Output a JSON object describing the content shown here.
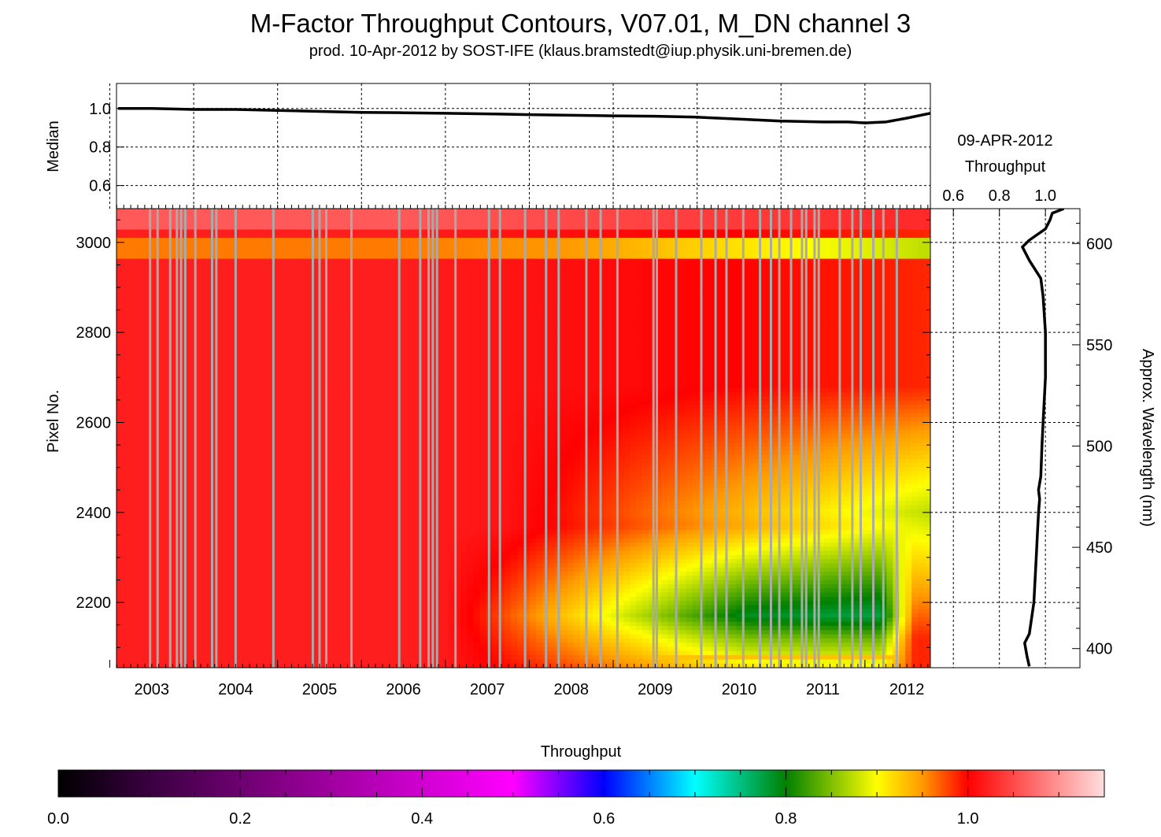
{
  "title": "M-Factor Throughput Contours, V07.01, M_DN channel 3",
  "subtitle": "prod. 10-Apr-2012 by SOST-IFE (klaus.bramstedt@iup.physik.uni-bremen.de)",
  "side_panel": {
    "date": "09-APR-2012",
    "label": "Throughput"
  },
  "colorbar": {
    "label": "Throughput",
    "range": [
      0.0,
      1.15
    ],
    "tick_labels": [
      "0.0",
      "0.2",
      "0.4",
      "0.6",
      "0.8",
      "1.0"
    ],
    "colormap": [
      [
        0.0,
        "#000000"
      ],
      [
        0.1,
        "#3a0040"
      ],
      [
        0.3,
        "#a000a0"
      ],
      [
        0.5,
        "#ff00ff"
      ],
      [
        0.6,
        "#0000ff"
      ],
      [
        0.7,
        "#00ffff"
      ],
      [
        0.8,
        "#008000"
      ],
      [
        0.9,
        "#ffff00"
      ],
      [
        0.95,
        "#ff9900"
      ],
      [
        1.0,
        "#ff0000"
      ],
      [
        1.15,
        "#ffdede"
      ]
    ]
  },
  "chart_data": [
    {
      "type": "line",
      "panel": "median",
      "ylabel": "Median",
      "ylim": [
        0.48,
        1.13
      ],
      "yticks": [
        "0.6",
        "0.8",
        "1.0"
      ],
      "xlim": [
        2002.58,
        2012.28
      ],
      "grid": true,
      "x": [
        2002.6,
        2003.0,
        2003.5,
        2004.0,
        2004.5,
        2005.0,
        2005.5,
        2006.0,
        2006.5,
        2007.0,
        2007.5,
        2008.0,
        2008.5,
        2009.0,
        2009.5,
        2010.0,
        2010.5,
        2011.0,
        2011.3,
        2011.5,
        2011.75,
        2012.0,
        2012.28
      ],
      "values": [
        1.0,
        1.0,
        0.995,
        0.995,
        0.99,
        0.985,
        0.98,
        0.978,
        0.975,
        0.972,
        0.968,
        0.965,
        0.962,
        0.96,
        0.955,
        0.945,
        0.935,
        0.93,
        0.93,
        0.925,
        0.93,
        0.95,
        0.975
      ]
    },
    {
      "type": "heatmap",
      "panel": "contour",
      "ylabel": "Pixel No.",
      "xlim": [
        2002.58,
        2012.28
      ],
      "ylim": [
        2055,
        3075
      ],
      "xticks": [
        "2003",
        "2004",
        "2005",
        "2006",
        "2007",
        "2008",
        "2009",
        "2010",
        "2011",
        "2012"
      ],
      "yticks": [
        "2200",
        "2400",
        "2600",
        "2800",
        "3000"
      ],
      "missing_data_color": "#aaaaaa",
      "data_gaps": [
        2002.98,
        2003.07,
        2003.22,
        2003.3,
        2003.35,
        2003.4,
        2003.52,
        2003.72,
        2003.77,
        2004.0,
        2004.45,
        2004.92,
        2005.0,
        2005.08,
        2005.38,
        2005.95,
        2006.2,
        2006.3,
        2006.35,
        2006.4,
        2006.62,
        2007.02,
        2007.15,
        2007.45,
        2007.7,
        2007.85,
        2008.18,
        2008.35,
        2008.55,
        2008.98,
        2009.02,
        2009.25,
        2009.55,
        2009.72,
        2009.85,
        2010.05,
        2010.25,
        2010.38,
        2010.48,
        2010.62,
        2010.75,
        2010.8,
        2010.9,
        2010.95,
        2011.2,
        2011.35,
        2011.45,
        2011.6,
        2011.72,
        2011.88
      ]
    },
    {
      "type": "line",
      "panel": "spectrum",
      "xlabel": "Throughput",
      "y2label": "Approx. Wavelength (nm)",
      "xlim": [
        0.5,
        1.15
      ],
      "xticks": [
        "0.6",
        "0.8",
        "1.0"
      ],
      "ylim": [
        2055,
        3075
      ],
      "y2ticks": [
        "400",
        "450",
        "500",
        "550",
        "600"
      ],
      "grid": true,
      "x": [
        0.93,
        0.92,
        0.91,
        0.93,
        0.95,
        0.955,
        0.96,
        0.965,
        0.97,
        0.975,
        0.97,
        0.98,
        0.985,
        0.99,
        0.995,
        1.0,
        1.0,
        0.99,
        0.98,
        0.93,
        0.9,
        0.93,
        1.0,
        1.02,
        1.03,
        1.08
      ],
      "y": [
        2058,
        2080,
        2110,
        2130,
        2200,
        2250,
        2300,
        2350,
        2400,
        2430,
        2450,
        2480,
        2550,
        2600,
        2650,
        2700,
        2800,
        2880,
        2920,
        2960,
        2990,
        3005,
        3030,
        3050,
        3065,
        3075
      ]
    }
  ]
}
